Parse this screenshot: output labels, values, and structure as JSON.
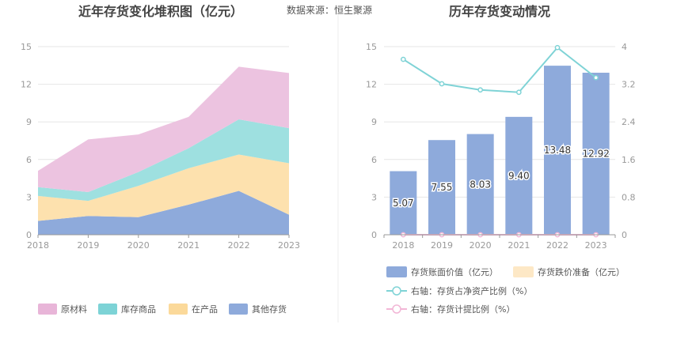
{
  "source_note": "数据来源：恒生聚源",
  "chart_data": [
    {
      "type": "area",
      "stacked": true,
      "title": "近年存货变化堆积图（亿元）",
      "x": [
        "2018",
        "2019",
        "2020",
        "2021",
        "2022",
        "2023"
      ],
      "ylim": [
        0,
        15
      ],
      "yticks": [
        "0",
        "3",
        "6",
        "9",
        "12",
        "15"
      ],
      "series": [
        {
          "name": "其他存货",
          "color": "#8eaadb",
          "values": [
            1.1,
            1.5,
            1.4,
            2.4,
            3.5,
            1.6
          ]
        },
        {
          "name": "在产品",
          "color": "#fde1ae",
          "values": [
            2.0,
            1.2,
            2.5,
            2.9,
            2.9,
            4.1
          ]
        },
        {
          "name": "库存商品",
          "color": "#9ee0e0",
          "values": [
            0.7,
            0.7,
            1.1,
            1.6,
            2.8,
            2.8
          ]
        },
        {
          "name": "原材料",
          "color": "#ecc3e0",
          "values": [
            1.3,
            4.2,
            3.0,
            2.5,
            4.2,
            4.4
          ]
        }
      ],
      "legend": [
        {
          "name": "原材料",
          "color": "#e8b5d8"
        },
        {
          "name": "库存商品",
          "color": "#7dd3d6"
        },
        {
          "name": "在产品",
          "color": "#fbd99a"
        },
        {
          "name": "其他存货",
          "color": "#8eaadb"
        }
      ]
    },
    {
      "type": "bar",
      "title": "历年存货变动情况",
      "categories": [
        "2018",
        "2019",
        "2020",
        "2021",
        "2022",
        "2023"
      ],
      "ylim": [
        0,
        15
      ],
      "yticks": [
        "0",
        "3",
        "6",
        "9",
        "12",
        "15"
      ],
      "y2lim": [
        0,
        4
      ],
      "y2ticks": [
        "0",
        "0.8",
        "1.6",
        "2.4",
        "3.2",
        "4"
      ],
      "series": [
        {
          "name": "存货账面价值（亿元）",
          "color": "#8eaadb",
          "axis": "left",
          "type": "bar",
          "values": [
            5.07,
            7.55,
            8.03,
            9.4,
            13.48,
            12.92
          ],
          "labels": [
            "5.07",
            "7.55",
            "8.03",
            "9.40",
            "13.48",
            "12.92"
          ]
        },
        {
          "name": "存货跌价准备（亿元）",
          "color": "#fde8c6",
          "axis": "left",
          "type": "bar",
          "values": [
            0,
            0,
            0,
            0,
            0,
            0
          ]
        },
        {
          "name": "右轴：存货占净资产比例（%）",
          "color": "#7fd3d6",
          "axis": "right",
          "type": "line",
          "values": [
            3.73,
            3.21,
            3.08,
            3.03,
            3.98,
            3.34
          ]
        },
        {
          "name": "右轴：存货计提比例（%）",
          "color": "#f2b6d6",
          "axis": "right",
          "type": "line",
          "values": [
            0,
            0,
            0,
            0,
            0,
            0
          ]
        }
      ]
    }
  ]
}
